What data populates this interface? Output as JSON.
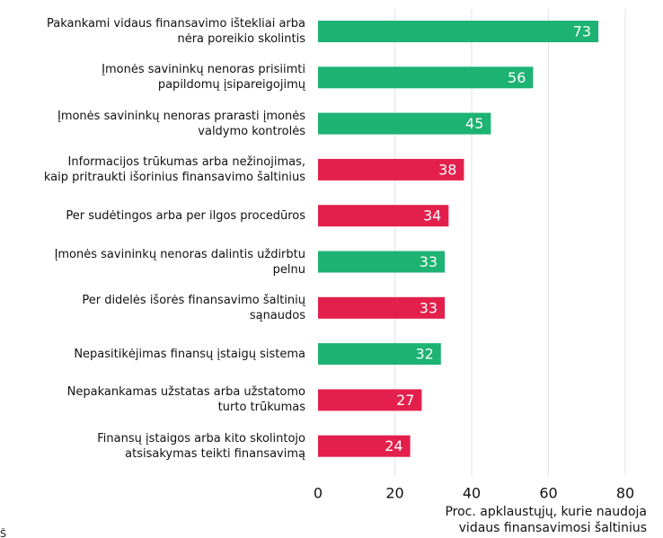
{
  "chart_data": {
    "type": "bar",
    "orientation": "horizontal",
    "categories": [
      "Pakankami vidaus finansavimo ištekliai arba\nnėra poreikio skolintis",
      "Įmonės savininkų nenoras prisiimti\npapildomų įsipareigojimų",
      "Įmonės savininkų nenoras prarasti įmonės\nvaldymo kontrolės",
      "Informacijos trūkumas arba nežinojimas,\nkaip pritraukti išorinius finansavimo šaltinius",
      "Per sudėtingos arba per ilgos procedūros",
      "Įmonės savininkų nenoras dalintis uždirbtu\npelnu",
      "Per didelės išorės finansavimo šaltinių\nsąnaudos",
      "Nepasitikėjimas finansų įstaigų sistema",
      "Nepakankamas užstatas arba užstatomo\nturto trūkumas",
      "Finansų įstaigos arba kito skolintojo\natsisakymas teikti finansavimą"
    ],
    "values": [
      73,
      56,
      45,
      38,
      34,
      33,
      33,
      32,
      27,
      24
    ],
    "colors": [
      "#1db373",
      "#1db373",
      "#1db373",
      "#e3204c",
      "#e3204c",
      "#1db373",
      "#e3204c",
      "#1db373",
      "#e3204c",
      "#e3204c"
    ],
    "xlabel": "Proc. apklaustųjų, kurie naudoja\nvidaus finansavimosi šaltinius",
    "xlim": [
      0,
      80
    ],
    "xticks": [
      0,
      20,
      40,
      60,
      80
    ],
    "grid": true,
    "note": "Š"
  }
}
